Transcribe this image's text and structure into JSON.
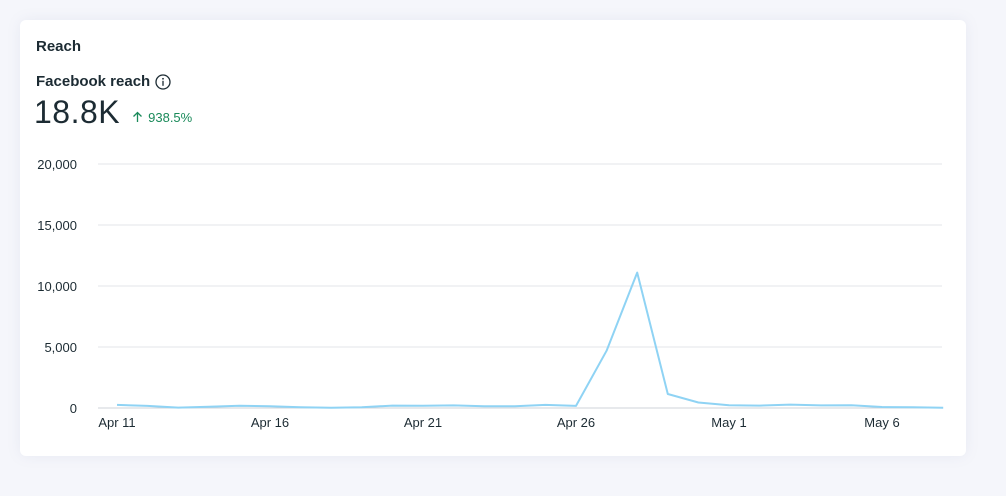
{
  "card": {
    "title": "Reach"
  },
  "metric": {
    "label": "Facebook reach",
    "value": "18.8K",
    "change": "938.5%",
    "trend_direction": "up",
    "trend_color": "#1a8a5a"
  },
  "icons": {
    "info": "info-icon",
    "trend": "arrow-up-icon"
  },
  "chart_data": {
    "type": "line",
    "title": "",
    "xlabel": "",
    "ylabel": "",
    "ylim": [
      0,
      20000
    ],
    "y_ticks": [
      0,
      5000,
      10000,
      15000,
      20000
    ],
    "y_tick_labels": [
      "0",
      "5,000",
      "10,000",
      "15,000",
      "20,000"
    ],
    "x_tick_labels": [
      "Apr 11",
      "Apr 16",
      "Apr 21",
      "Apr 26",
      "May 1",
      "May 6"
    ],
    "grid": true,
    "line_color": "#8fd3f4",
    "x": [
      "Apr 11",
      "Apr 12",
      "Apr 13",
      "Apr 14",
      "Apr 15",
      "Apr 16",
      "Apr 17",
      "Apr 18",
      "Apr 19",
      "Apr 20",
      "Apr 21",
      "Apr 22",
      "Apr 23",
      "Apr 24",
      "Apr 25",
      "Apr 26",
      "Apr 27",
      "Apr 28",
      "Apr 29",
      "Apr 30",
      "May 1",
      "May 2",
      "May 3",
      "May 4",
      "May 5",
      "May 6",
      "May 7",
      "May 8"
    ],
    "series": [
      {
        "values": [
          250,
          170,
          30,
          100,
          180,
          140,
          60,
          20,
          60,
          200,
          190,
          210,
          150,
          140,
          250,
          170,
          4700,
          11100,
          1150,
          450,
          230,
          200,
          280,
          210,
          230,
          80,
          60,
          20
        ]
      }
    ]
  }
}
